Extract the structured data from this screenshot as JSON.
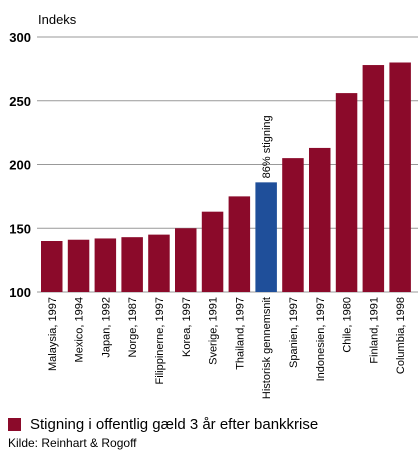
{
  "chart_data": {
    "type": "bar",
    "ylabel": "Indeks",
    "ylim": [
      100,
      300
    ],
    "yticks": [
      100,
      150,
      200,
      250,
      300
    ],
    "grid": true,
    "categories": [
      "Malaysia, 1997",
      "Mexico, 1994",
      "Japan, 1992",
      "Norge, 1987",
      "Filippinerne, 1997",
      "Korea, 1997",
      "Sverige, 1991",
      "Thailand, 1997",
      "Historisk gennemsnit",
      "Spanien, 1997",
      "Indonesien, 1997",
      "Chile, 1980",
      "Finland, 1991",
      "Columbia, 1998"
    ],
    "values": [
      140,
      141,
      142,
      143,
      145,
      150,
      163,
      175,
      186,
      205,
      213,
      256,
      278,
      280
    ],
    "highlight_index": 8,
    "highlight_label": "86% stigning",
    "series_color": "#8b0a2a",
    "highlight_color": "#1f4f9a",
    "legend": {
      "label": "Stigning i offentlig gæld 3 år efter bankkrise",
      "position": "bottom-left"
    }
  },
  "source": "Kilde: Reinhart & Rogoff"
}
